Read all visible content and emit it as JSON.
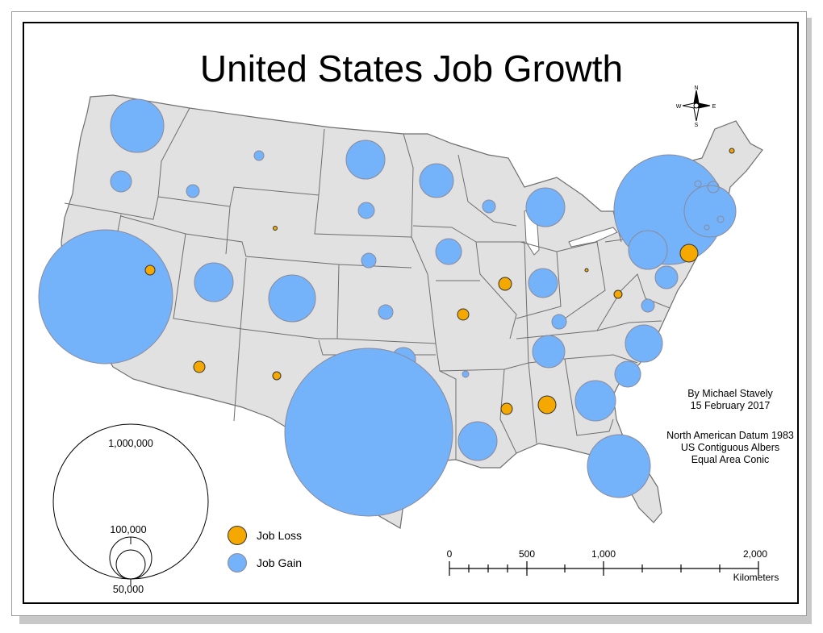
{
  "title": "United States Job Growth",
  "credit": {
    "author": "By Michael Stavely",
    "date": "15 February 2017"
  },
  "projection": {
    "line1": "North American Datum 1983",
    "line2": "US Contiguous Albers",
    "line3": "Equal Area Conic"
  },
  "legend": {
    "loss_label": "Job Loss",
    "gain_label": "Job Gain"
  },
  "colors": {
    "gain": "#74b2fa",
    "loss": "#f5a800",
    "land": "#e1e1e1",
    "border": "#6e6e6e"
  },
  "size_legend": {
    "large": "1,000,000",
    "medium": "100,000",
    "small": "50,000"
  },
  "scale_bar": {
    "ticks": [
      "0",
      "500",
      "1,000",
      "2,000"
    ],
    "unit": "Kilometers"
  },
  "north_arrow": {
    "n": "N",
    "s": "S",
    "e": "E",
    "w": "W"
  }
}
